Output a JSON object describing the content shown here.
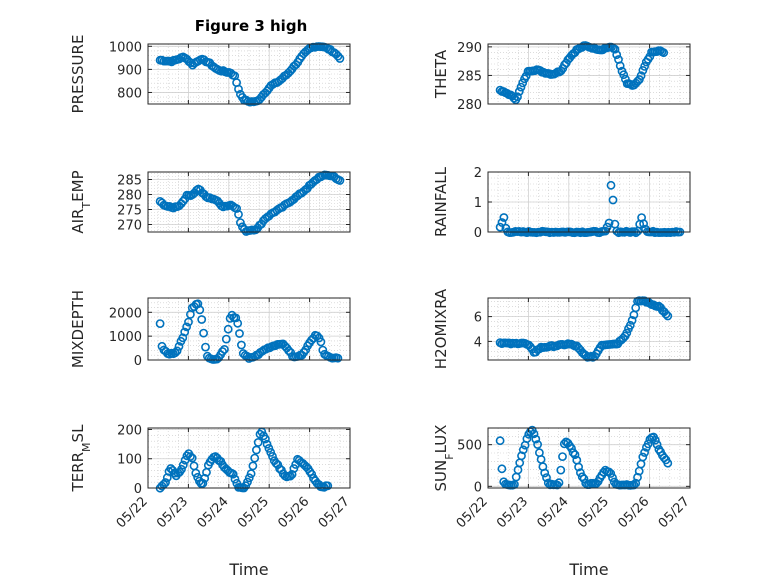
{
  "title": "Figure 3 high",
  "marker_color": "#0072BD",
  "chart_data": [
    {
      "type": "scatter",
      "ylabel": "PRESSURE",
      "ylim": [
        750,
        1010
      ],
      "yticks": [
        800,
        900,
        1000
      ],
      "xlim": [
        0,
        5
      ],
      "xticklabels": [
        "05/22",
        "05/23",
        "05/24",
        "05/25",
        "05/26",
        "05/27"
      ],
      "xlabel": "",
      "keys": [
        [
          0.3,
          940
        ],
        [
          0.6,
          935
        ],
        [
          0.9,
          955
        ],
        [
          1.1,
          920
        ],
        [
          1.3,
          945
        ],
        [
          1.5,
          930
        ],
        [
          1.7,
          900
        ],
        [
          1.9,
          890
        ],
        [
          2.05,
          885
        ],
        [
          2.15,
          870
        ],
        [
          2.25,
          810
        ],
        [
          2.35,
          770
        ],
        [
          2.5,
          760
        ],
        [
          2.7,
          760
        ],
        [
          2.85,
          790
        ],
        [
          3.05,
          830
        ],
        [
          3.25,
          850
        ],
        [
          3.45,
          880
        ],
        [
          3.65,
          920
        ],
        [
          3.85,
          965
        ],
        [
          4.0,
          990
        ],
        [
          4.15,
          1000
        ],
        [
          4.3,
          1000
        ],
        [
          4.45,
          990
        ],
        [
          4.6,
          975
        ],
        [
          4.75,
          950
        ]
      ],
      "n": 95
    },
    {
      "type": "scatter",
      "ylabel": "THETA",
      "ylim": [
        280,
        290.5
      ],
      "yticks": [
        280,
        285,
        290
      ],
      "xlim": [
        0,
        5
      ],
      "xticklabels": [
        "05/22",
        "05/23",
        "05/24",
        "05/25",
        "05/26",
        "05/27"
      ],
      "xlabel": "",
      "keys": [
        [
          0.3,
          282.3
        ],
        [
          0.5,
          281.8
        ],
        [
          0.7,
          280.8
        ],
        [
          0.85,
          283.5
        ],
        [
          1.0,
          285.8
        ],
        [
          1.2,
          286.0
        ],
        [
          1.4,
          285.5
        ],
        [
          1.6,
          285.2
        ],
        [
          1.8,
          285.8
        ],
        [
          2.0,
          288.0
        ],
        [
          2.2,
          289.5
        ],
        [
          2.4,
          290.2
        ],
        [
          2.6,
          289.8
        ],
        [
          2.8,
          289.5
        ],
        [
          3.0,
          290.0
        ],
        [
          3.15,
          289.6
        ],
        [
          3.3,
          286.0
        ],
        [
          3.45,
          283.5
        ],
        [
          3.6,
          283.2
        ],
        [
          3.75,
          284.2
        ],
        [
          3.9,
          287.0
        ],
        [
          4.05,
          289.0
        ],
        [
          4.25,
          289.3
        ],
        [
          4.35,
          289.0
        ]
      ],
      "n": 95
    },
    {
      "type": "scatter",
      "ylabel": "AIR_TEMP",
      "ylim": [
        267.5,
        287.5
      ],
      "yticks": [
        270,
        275,
        280,
        285
      ],
      "xlim": [
        0,
        5
      ],
      "xticklabels": [
        "05/22",
        "05/23",
        "05/24",
        "05/25",
        "05/26",
        "05/27"
      ],
      "xlabel": "",
      "keys": [
        [
          0.3,
          277.5
        ],
        [
          0.45,
          276.2
        ],
        [
          0.6,
          275.5
        ],
        [
          0.8,
          276.5
        ],
        [
          0.95,
          279.5
        ],
        [
          1.1,
          280.0
        ],
        [
          1.25,
          282.0
        ],
        [
          1.45,
          279.0
        ],
        [
          1.65,
          278.5
        ],
        [
          1.85,
          276.0
        ],
        [
          2.05,
          276.5
        ],
        [
          2.2,
          275.5
        ],
        [
          2.3,
          270.0
        ],
        [
          2.4,
          267.8
        ],
        [
          2.55,
          268.2
        ],
        [
          2.7,
          268.5
        ],
        [
          2.9,
          272.0
        ],
        [
          3.1,
          274.0
        ],
        [
          3.3,
          275.5
        ],
        [
          3.55,
          278.0
        ],
        [
          3.8,
          280.5
        ],
        [
          4.05,
          283.5
        ],
        [
          4.25,
          286.0
        ],
        [
          4.45,
          286.5
        ],
        [
          4.6,
          286.0
        ],
        [
          4.75,
          284.5
        ]
      ],
      "n": 95
    },
    {
      "type": "scatter",
      "ylabel": "RAINFALL",
      "ylim": [
        0,
        2
      ],
      "yticks": [
        0,
        1,
        2
      ],
      "xlim": [
        0,
        5
      ],
      "xticklabels": [
        "05/22",
        "05/23",
        "05/24",
        "05/25",
        "05/26",
        "05/27"
      ],
      "xlabel": "",
      "keys": [
        [
          0.3,
          0.15
        ],
        [
          0.4,
          0.5
        ],
        [
          0.45,
          0.05
        ],
        [
          0.5,
          0.0
        ],
        [
          2.9,
          0.0
        ],
        [
          3.0,
          0.3
        ],
        [
          3.05,
          1.65
        ],
        [
          3.1,
          1.0
        ],
        [
          3.15,
          0.1
        ],
        [
          3.2,
          0.0
        ],
        [
          3.7,
          0.0
        ],
        [
          3.8,
          0.5
        ],
        [
          3.85,
          0.3
        ],
        [
          3.9,
          0.1
        ],
        [
          3.95,
          0.0
        ],
        [
          4.75,
          0.0
        ]
      ],
      "n": 95
    },
    {
      "type": "scatter",
      "ylabel": "MIXDEPTH",
      "ylim": [
        0,
        2600
      ],
      "yticks": [
        0,
        1000,
        2000
      ],
      "xlim": [
        0,
        5
      ],
      "xticklabels": [
        "05/22",
        "05/23",
        "05/24",
        "05/25",
        "05/26",
        "05/27"
      ],
      "xlabel": "",
      "keys": [
        [
          0.3,
          1500
        ],
        [
          0.35,
          500
        ],
        [
          0.5,
          250
        ],
        [
          0.7,
          300
        ],
        [
          0.85,
          900
        ],
        [
          1.0,
          1600
        ],
        [
          1.1,
          2200
        ],
        [
          1.25,
          2400
        ],
        [
          1.35,
          1500
        ],
        [
          1.45,
          200
        ],
        [
          1.6,
          0
        ],
        [
          1.75,
          100
        ],
        [
          1.9,
          500
        ],
        [
          2.05,
          1900
        ],
        [
          2.2,
          1700
        ],
        [
          2.35,
          300
        ],
        [
          2.5,
          50
        ],
        [
          2.7,
          200
        ],
        [
          2.9,
          450
        ],
        [
          3.1,
          600
        ],
        [
          3.3,
          700
        ],
        [
          3.45,
          500
        ],
        [
          3.6,
          100
        ],
        [
          3.8,
          200
        ],
        [
          4.0,
          700
        ],
        [
          4.15,
          1100
        ],
        [
          4.25,
          900
        ],
        [
          4.35,
          300
        ],
        [
          4.5,
          100
        ],
        [
          4.7,
          100
        ]
      ],
      "n": 95
    },
    {
      "type": "scatter",
      "ylabel": "H2OMIXRA",
      "ylim": [
        2.5,
        7.5
      ],
      "yticks": [
        4,
        6
      ],
      "xlim": [
        0,
        5
      ],
      "xticklabels": [
        "05/22",
        "05/23",
        "05/24",
        "05/25",
        "05/26",
        "05/27"
      ],
      "xlabel": "",
      "keys": [
        [
          0.3,
          3.9
        ],
        [
          0.6,
          3.8
        ],
        [
          0.85,
          3.9
        ],
        [
          1.0,
          3.7
        ],
        [
          1.15,
          3.1
        ],
        [
          1.3,
          3.5
        ],
        [
          1.55,
          3.6
        ],
        [
          1.8,
          3.7
        ],
        [
          2.0,
          3.8
        ],
        [
          2.2,
          3.6
        ],
        [
          2.35,
          3.0
        ],
        [
          2.5,
          2.7
        ],
        [
          2.65,
          2.8
        ],
        [
          2.8,
          3.7
        ],
        [
          3.0,
          3.8
        ],
        [
          3.2,
          3.8
        ],
        [
          3.4,
          4.5
        ],
        [
          3.55,
          5.5
        ],
        [
          3.7,
          7.2
        ],
        [
          3.85,
          7.3
        ],
        [
          4.05,
          7.0
        ],
        [
          4.25,
          6.8
        ],
        [
          4.45,
          6.0
        ]
      ],
      "n": 95
    },
    {
      "type": "scatter",
      "ylabel": "TERR_MSL",
      "ylim": [
        0,
        205
      ],
      "yticks": [
        0,
        100,
        200
      ],
      "xlim": [
        0,
        5
      ],
      "xticklabels": [
        "05/22",
        "05/23",
        "05/24",
        "05/25",
        "05/26",
        "05/27"
      ],
      "xlabel": "Time",
      "keys": [
        [
          0.3,
          0
        ],
        [
          0.45,
          20
        ],
        [
          0.55,
          70
        ],
        [
          0.7,
          40
        ],
        [
          0.85,
          70
        ],
        [
          1.0,
          120
        ],
        [
          1.1,
          100
        ],
        [
          1.2,
          40
        ],
        [
          1.35,
          10
        ],
        [
          1.5,
          80
        ],
        [
          1.65,
          110
        ],
        [
          1.8,
          90
        ],
        [
          1.95,
          60
        ],
        [
          2.1,
          50
        ],
        [
          2.25,
          0
        ],
        [
          2.4,
          0
        ],
        [
          2.55,
          50
        ],
        [
          2.7,
          140
        ],
        [
          2.8,
          200
        ],
        [
          2.95,
          150
        ],
        [
          3.1,
          100
        ],
        [
          3.25,
          70
        ],
        [
          3.4,
          40
        ],
        [
          3.55,
          40
        ],
        [
          3.7,
          100
        ],
        [
          3.85,
          80
        ],
        [
          4.0,
          60
        ],
        [
          4.15,
          20
        ],
        [
          4.3,
          0
        ],
        [
          4.45,
          10
        ]
      ],
      "n": 95
    },
    {
      "type": "scatter",
      "ylabel": "SUN_FLUX",
      "ylim": [
        -20,
        700
      ],
      "yticks": [
        0,
        500
      ],
      "xlim": [
        0,
        5
      ],
      "xticklabels": [
        "05/22",
        "05/23",
        "05/24",
        "05/25",
        "05/26",
        "05/27"
      ],
      "xlabel": "Time",
      "keys": [
        [
          0.3,
          550
        ],
        [
          0.32,
          330
        ],
        [
          0.35,
          180
        ],
        [
          0.4,
          20
        ],
        [
          0.65,
          20
        ],
        [
          0.85,
          400
        ],
        [
          1.0,
          620
        ],
        [
          1.1,
          680
        ],
        [
          1.2,
          550
        ],
        [
          1.35,
          250
        ],
        [
          1.5,
          20
        ],
        [
          1.75,
          20
        ],
        [
          1.9,
          550
        ],
        [
          2.0,
          500
        ],
        [
          2.15,
          380
        ],
        [
          2.3,
          150
        ],
        [
          2.45,
          20
        ],
        [
          2.7,
          40
        ],
        [
          2.9,
          200
        ],
        [
          3.05,
          150
        ],
        [
          3.15,
          20
        ],
        [
          3.4,
          20
        ],
        [
          3.65,
          20
        ],
        [
          3.85,
          380
        ],
        [
          4.0,
          550
        ],
        [
          4.1,
          600
        ],
        [
          4.2,
          480
        ],
        [
          4.3,
          380
        ],
        [
          4.45,
          280
        ]
      ],
      "n": 95
    }
  ]
}
